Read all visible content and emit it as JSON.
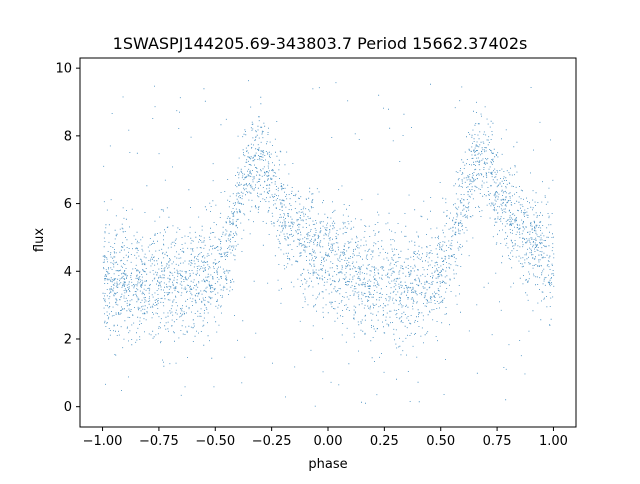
{
  "chart_data": {
    "type": "scatter",
    "title": "1SWASPJ144205.69-343803.7 Period 15662.37402s",
    "xlabel": "phase",
    "ylabel": "flux",
    "xlim": [
      -1.1,
      1.1
    ],
    "ylim": [
      -0.6,
      10.3
    ],
    "x_ticks": [
      -1.0,
      -0.75,
      -0.5,
      -0.25,
      0.0,
      0.25,
      0.5,
      0.75,
      1.0
    ],
    "x_tick_labels": [
      "−1.00",
      "−0.75",
      "−0.50",
      "−0.25",
      "0.00",
      "0.25",
      "0.50",
      "0.75",
      "1.00"
    ],
    "y_ticks": [
      0,
      2,
      4,
      6,
      8,
      10
    ],
    "y_tick_labels": [
      "0",
      "2",
      "4",
      "6",
      "8",
      "10"
    ],
    "grid": false,
    "legend": "none",
    "series": [
      {
        "color": "#1f77b4",
        "description_of_distribution": "dense phase-folded light curve: baseline flux ~3.7 with scatter, hump peaking ~7.3 near phase -0.33 and 0.67, fading to baseline by phase 0.0 and 1.0",
        "profile_phase": [
          -1.0,
          -0.9,
          -0.8,
          -0.7,
          -0.6,
          -0.5,
          -0.45,
          -0.4,
          -0.35,
          -0.3,
          -0.25,
          -0.2,
          -0.1,
          0.0,
          0.1,
          0.2,
          0.3,
          0.4,
          0.5,
          0.55,
          0.6,
          0.65,
          0.7,
          0.75,
          0.8,
          0.9,
          1.0
        ],
        "profile_flux": [
          3.7,
          3.7,
          3.7,
          3.7,
          3.75,
          3.9,
          4.6,
          6.0,
          7.2,
          7.3,
          6.4,
          5.6,
          4.9,
          4.3,
          3.9,
          3.7,
          3.7,
          3.7,
          3.9,
          4.6,
          6.0,
          7.2,
          7.3,
          6.4,
          5.6,
          4.9,
          4.3
        ]
      }
    ]
  }
}
